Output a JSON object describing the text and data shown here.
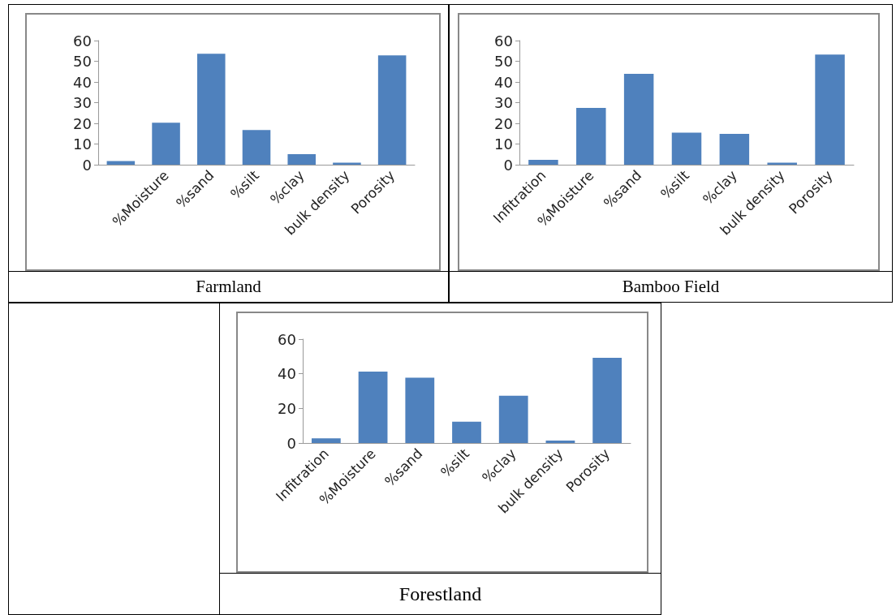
{
  "chart_data": [
    {
      "type": "bar",
      "title": "Farmland",
      "categories": [
        null,
        "%Moisture",
        "%sand",
        "%silt",
        "%clay",
        "bulk density",
        "Porosity"
      ],
      "values": [
        1.8,
        20.3,
        53.6,
        16.8,
        5.1,
        1.0,
        52.8
      ],
      "color": "#4f81bd",
      "ylim": [
        0,
        60
      ],
      "yticks": [
        0,
        10,
        20,
        30,
        40,
        50,
        60
      ]
    },
    {
      "type": "bar",
      "title": "Bamboo Field",
      "categories": [
        "Infitration",
        "%Moisture",
        "%sand",
        "%silt",
        "%clay",
        "bulk density",
        "Porosity"
      ],
      "values": [
        2.4,
        27.5,
        43.9,
        15.5,
        14.9,
        1.0,
        53.2
      ],
      "color": "#4f81bd",
      "ylim": [
        0,
        60
      ],
      "yticks": [
        0,
        10,
        20,
        30,
        40,
        50,
        60
      ]
    },
    {
      "type": "bar",
      "title": "Forestland",
      "categories": [
        "Infitration",
        "%Moisture",
        "%sand",
        "%silt",
        "%clay",
        "bulk density",
        "Porosity"
      ],
      "values": [
        2.7,
        41.3,
        37.7,
        12.3,
        27.3,
        1.4,
        49.2
      ],
      "color": "#4f81bd",
      "ylim": [
        0,
        60
      ],
      "yticks": [
        0,
        20,
        40,
        60
      ]
    }
  ]
}
